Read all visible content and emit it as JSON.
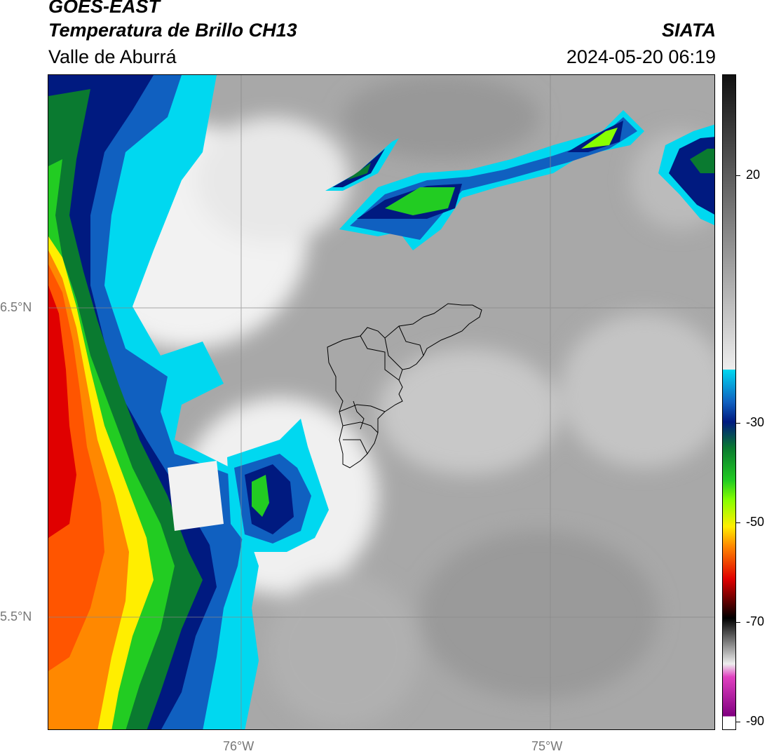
{
  "header": {
    "satellite": "GOES-EAST",
    "product": "Temperatura de Brillo CH13",
    "region": "Valle de Aburrá",
    "organization": "SIATA",
    "timestamp": "2024-05-20 06:19"
  },
  "map": {
    "lat_labels": [
      "6.5°N",
      "5.5°N"
    ],
    "lon_labels": [
      "76°W",
      "75°W"
    ]
  },
  "colorbar": {
    "ticks": [
      "20",
      "-30",
      "-50",
      "-70",
      "-90"
    ],
    "colors": {
      "warm_dark": "#111111",
      "warm_light": "#eeeeee",
      "cyan": "#00d8f0",
      "blue": "#1060c0",
      "navy": "#001a80",
      "green_dark": "#0a7a30",
      "green": "#22cc22",
      "lime": "#88ff00",
      "yellow": "#ffee00",
      "orange": "#ff8800",
      "red": "#e00000",
      "black": "#000000",
      "magenta": "#e040c0",
      "purple": "#800080"
    }
  }
}
